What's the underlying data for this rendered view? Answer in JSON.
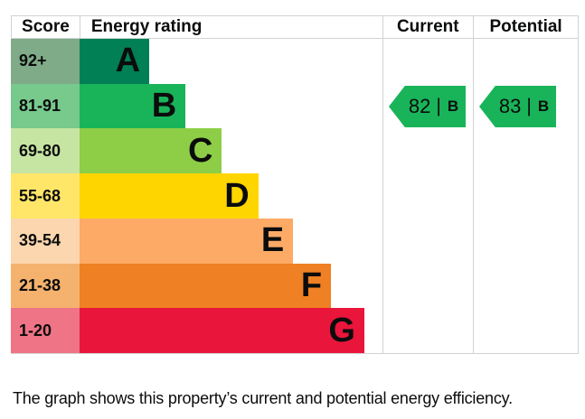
{
  "chart_data": {
    "type": "bar",
    "orientation": "horizontal",
    "columns": [
      "Score",
      "Energy rating",
      "Current",
      "Potential"
    ],
    "bands": [
      {
        "letter": "A",
        "score_range": "92+",
        "bar_color": "#008054",
        "score_cell_color": "#7fab88",
        "bar_width_pct": 23
      },
      {
        "letter": "B",
        "score_range": "81-91",
        "bar_color": "#19b459",
        "score_cell_color": "#77c98c",
        "bar_width_pct": 35
      },
      {
        "letter": "C",
        "score_range": "69-80",
        "bar_color": "#8dce46",
        "score_cell_color": "#c6e5a3",
        "bar_width_pct": 47
      },
      {
        "letter": "D",
        "score_range": "55-68",
        "bar_color": "#ffd500",
        "score_cell_color": "#ffe669",
        "bar_width_pct": 59
      },
      {
        "letter": "E",
        "score_range": "39-54",
        "bar_color": "#fcaa65",
        "score_cell_color": "#fcd6ae",
        "bar_width_pct": 70.5
      },
      {
        "letter": "F",
        "score_range": "21-38",
        "bar_color": "#ef8023",
        "score_cell_color": "#f4b26e",
        "bar_width_pct": 83
      },
      {
        "letter": "G",
        "score_range": "1-20",
        "bar_color": "#e9153b",
        "score_cell_color": "#ef7486",
        "bar_width_pct": 94
      }
    ],
    "current": {
      "score": "82",
      "separator": "|",
      "band": "B",
      "arrow_color": "#19b459",
      "band_row_index": 1
    },
    "potential": {
      "score": "83",
      "separator": "|",
      "band": "B",
      "arrow_color": "#19b459",
      "band_row_index": 1
    },
    "caption": "The graph shows this property’s current and potential energy efficiency.",
    "styles": {
      "border_color": "#d0d2d3",
      "text_color": "#0b0c0c"
    }
  }
}
